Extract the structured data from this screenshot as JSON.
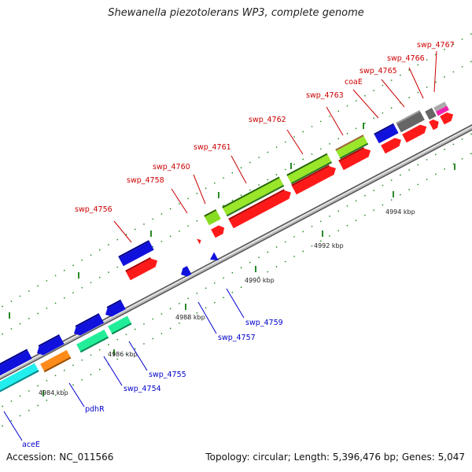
{
  "title": "Shewanella piezotolerans WP3, complete genome",
  "accession": "Accession: NC_011566",
  "stats": "Topology: circular; Length: 5,396,476 bp; Genes: 5,047",
  "colors": {
    "backbone": "#888888",
    "tick": "#2a8a2a",
    "forward_label": "#cc0000",
    "reverse_label": "#0000cc"
  },
  "axis_labels": [
    "4984 kbp",
    "4986 kbp",
    "4988 kbp",
    "4990 kbp",
    "4992 kbp",
    "4994 kbp"
  ],
  "forward_genes": [
    "swp_4756",
    "swp_4758",
    "swp_4760",
    "swp_4761",
    "swp_4762",
    "swp_4763",
    "coaE",
    "swp_4765",
    "swp_4766",
    "swp_4767"
  ],
  "reverse_genes": [
    "swp_4759",
    "swp_4757",
    "swp_4755",
    "swp_4754",
    "pdhR",
    "aceE"
  ]
}
